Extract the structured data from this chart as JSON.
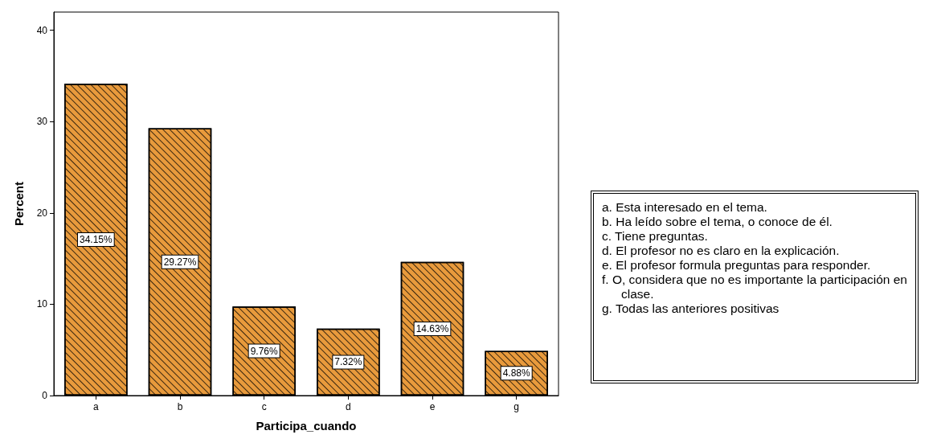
{
  "chart_data": {
    "type": "bar",
    "xlabel": "Participa_cuando",
    "ylabel": "Percent",
    "categories": [
      "a",
      "b",
      "c",
      "d",
      "e",
      "g"
    ],
    "values": [
      34.15,
      29.27,
      9.76,
      7.32,
      14.63,
      4.88
    ],
    "value_labels": [
      "34.15%",
      "29.27%",
      "9.76%",
      "7.32%",
      "14.63%",
      "4.88%"
    ],
    "color": "#e89a3c",
    "ylim": [
      0,
      42
    ],
    "yticks": [
      0,
      10,
      20,
      30,
      40
    ],
    "grid": false,
    "annotations": [
      "a. Esta interesado en el tema.",
      "b. Ha leído sobre el tema, o conoce de él.",
      "c. Tiene preguntas.",
      "d. El profesor no es claro en la explicación.",
      "e. El profesor formula preguntas para responder.",
      "f. O, considera que no es importante la participación en clase.",
      "g. Todas las anteriores positivas"
    ]
  }
}
